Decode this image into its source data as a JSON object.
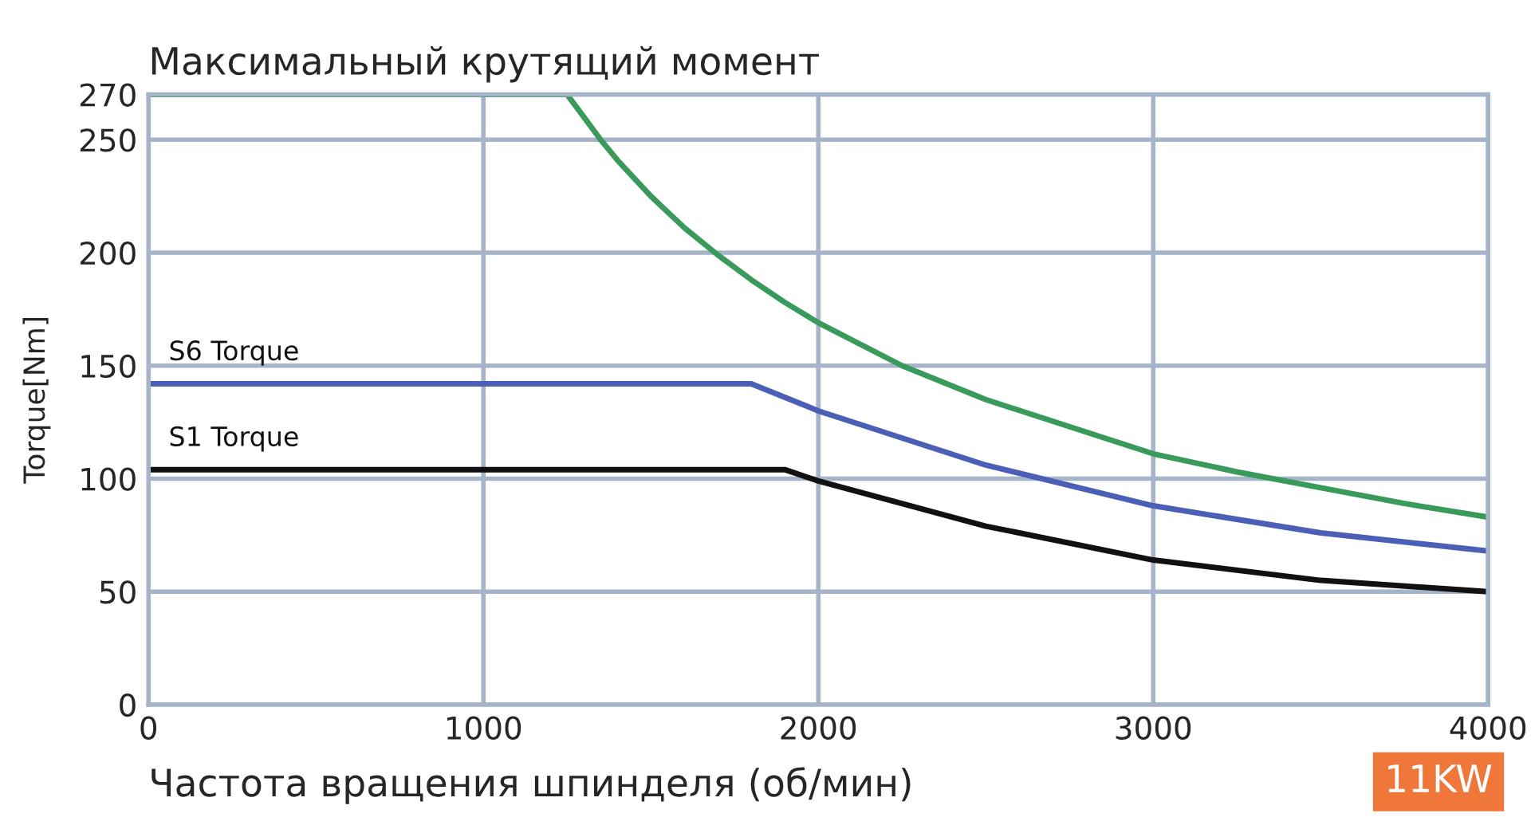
{
  "chart_data": {
    "type": "line",
    "title": "Максимальный крутящий момент",
    "xlabel": "Частота вращения шпинделя (об/мин)",
    "ylabel": "Torque[Nm]",
    "xlim": [
      0,
      4000
    ],
    "xticks": [
      0,
      1000,
      2000,
      3000,
      4000
    ],
    "ylim": [
      0,
      270
    ],
    "yticks": [
      0,
      50,
      100,
      150,
      200,
      250,
      270
    ],
    "grid": true,
    "legend": false,
    "series": [
      {
        "color": "#3a9a5b",
        "x": [
          0,
          1250,
          1300,
          1350,
          1400,
          1500,
          1600,
          1700,
          1800,
          1900,
          2000,
          2250,
          2500,
          2750,
          3000,
          3250,
          3500,
          3750,
          4000
        ],
        "values": [
          270,
          270,
          260,
          250,
          241,
          225,
          211,
          199,
          188,
          178,
          169,
          150,
          135,
          123,
          111,
          103,
          96,
          89,
          83
        ]
      },
      {
        "name": "S6 Torque",
        "color": "#4a5fb5",
        "x": [
          0,
          1800,
          2000,
          2500,
          3000,
          3500,
          4000
        ],
        "values": [
          142,
          142,
          130,
          106,
          88,
          76,
          68
        ]
      },
      {
        "name": "S1 Torque",
        "color": "#111111",
        "x": [
          0,
          1900,
          2000,
          2500,
          3000,
          3500,
          4000
        ],
        "values": [
          104,
          104,
          99,
          79,
          64,
          55,
          50
        ]
      }
    ],
    "annotations": [
      "11KW"
    ]
  }
}
